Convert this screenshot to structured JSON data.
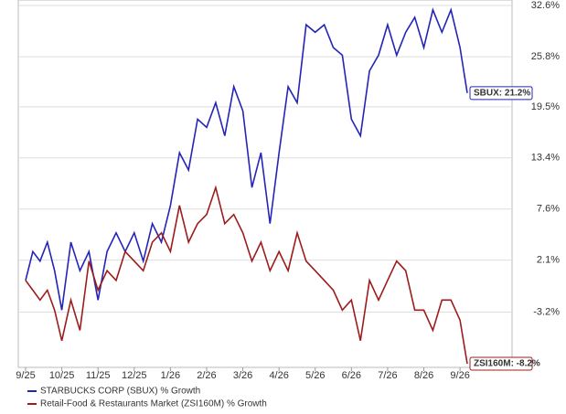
{
  "chart_data": {
    "type": "line",
    "x": [
      0,
      0.2,
      0.4,
      0.6,
      0.8,
      1,
      1.25,
      1.5,
      1.75,
      2,
      2.25,
      2.5,
      2.75,
      3,
      3.25,
      3.5,
      3.75,
      4,
      4.25,
      4.5,
      4.75,
      5,
      5.25,
      5.5,
      5.75,
      6,
      6.25,
      6.5,
      6.75,
      7,
      7.25,
      7.5,
      7.75,
      8,
      8.25,
      8.5,
      8.75,
      9,
      9.25,
      9.5,
      9.75,
      10,
      10.25,
      10.5,
      10.75,
      11,
      11.25,
      11.5,
      11.75,
      12,
      12.2
    ],
    "series": [
      {
        "name": "STARBUCKS CORP (SBUX) % Growth",
        "color": "#2424b8",
        "values": [
          0,
          3,
          2,
          4,
          1,
          -3,
          4,
          1,
          3,
          -2,
          3,
          5,
          3,
          5,
          2,
          6,
          4,
          8,
          14,
          12,
          18,
          17,
          20,
          16,
          22,
          19,
          10,
          14,
          6,
          14,
          22,
          20,
          30,
          29,
          30,
          27,
          26,
          18,
          16,
          24,
          26,
          30,
          26,
          29,
          31,
          27,
          32,
          29,
          32,
          27,
          21.2
        ]
      },
      {
        "name": "Retail-Food & Restaurants Market (ZSI160M) % Growth",
        "color": "#9c1c1c",
        "values": [
          0,
          -1,
          -2,
          -1,
          -3,
          -6,
          -2,
          -5,
          2,
          -1,
          1,
          0,
          3,
          2,
          1,
          4,
          5,
          3,
          8,
          4,
          6,
          7,
          10,
          6,
          7,
          5,
          2,
          4,
          1,
          3,
          1,
          5,
          2,
          1,
          0,
          -1,
          -3,
          -2,
          -6,
          0,
          -2,
          0,
          2,
          1,
          -3,
          -3,
          -5,
          -2,
          -2,
          -4,
          -8.2
        ]
      }
    ],
    "annotations": [
      "SBUX: 21.2%",
      "ZSI160M: -8.2%"
    ],
    "xlim": [
      0,
      12.3
    ],
    "xticks": [
      {
        "value": 0,
        "label": "9/25"
      },
      {
        "value": 1,
        "label": "10/25"
      },
      {
        "value": 2,
        "label": "11/25"
      },
      {
        "value": 3,
        "label": "12/25"
      },
      {
        "value": 4,
        "label": "1/26"
      },
      {
        "value": 5,
        "label": "2/26"
      },
      {
        "value": 6,
        "label": "3/26"
      },
      {
        "value": 7,
        "label": "4/26"
      },
      {
        "value": 8,
        "label": "5/26"
      },
      {
        "value": 9,
        "label": "6/26"
      },
      {
        "value": 10,
        "label": "7/26"
      },
      {
        "value": 11,
        "label": "8/26"
      },
      {
        "value": 12,
        "label": "9/26"
      }
    ],
    "ylim": [
      -8.2,
      32.6
    ],
    "yticks": [
      {
        "value": 32.6,
        "label": "32.6%"
      },
      {
        "value": 25.8,
        "label": "25.8%"
      },
      {
        "value": 19.5,
        "label": "19.5%"
      },
      {
        "value": 13.4,
        "label": "13.4%"
      },
      {
        "value": 7.6,
        "label": "7.6%"
      },
      {
        "value": 2.1,
        "label": "2.1%"
      },
      {
        "value": -3.2,
        "label": "-3.2%"
      }
    ],
    "log_growth_scale": true,
    "grid": true
  }
}
